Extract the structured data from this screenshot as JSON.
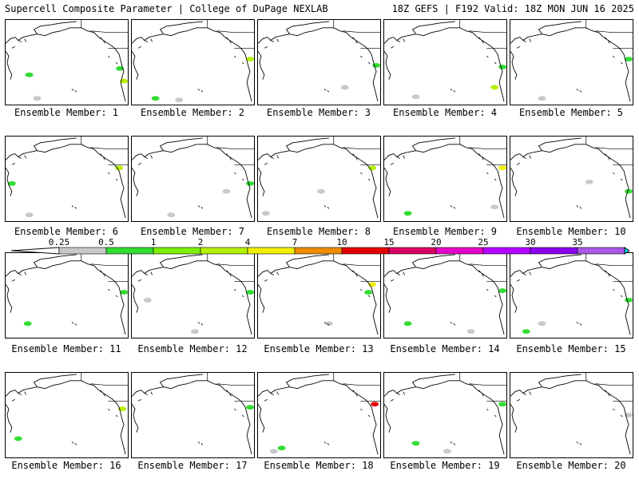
{
  "header": {
    "title": "Supercell Composite Parameter | College of DuPage NEXLAB",
    "run_info": "18Z GEFS | F192 Valid: 18Z MON JUN 16 2025"
  },
  "members": [
    {
      "label": "Ensemble Member: 1"
    },
    {
      "label": "Ensemble Member: 2"
    },
    {
      "label": "Ensemble Member: 3"
    },
    {
      "label": "Ensemble Member: 4"
    },
    {
      "label": "Ensemble Member: 5"
    },
    {
      "label": "Ensemble Member: 6"
    },
    {
      "label": "Ensemble Member: 7"
    },
    {
      "label": "Ensemble Member: 8"
    },
    {
      "label": "Ensemble Member: 9"
    },
    {
      "label": "Ensemble Member: 10"
    },
    {
      "label": "Ensemble Member: 11"
    },
    {
      "label": "Ensemble Member: 12"
    },
    {
      "label": "Ensemble Member: 13"
    },
    {
      "label": "Ensemble Member: 14"
    },
    {
      "label": "Ensemble Member: 15"
    },
    {
      "label": "Ensemble Member: 16"
    },
    {
      "label": "Ensemble Member: 17"
    },
    {
      "label": "Ensemble Member: 18"
    },
    {
      "label": "Ensemble Member: 19"
    },
    {
      "label": "Ensemble Member: 20"
    }
  ],
  "colorbar": {
    "ticks": [
      "0.25",
      "0.5",
      "1",
      "2",
      "4",
      "7",
      "10",
      "15",
      "20",
      "25",
      "30",
      "35"
    ],
    "colors": [
      "#c8c8c8",
      "#32dc32",
      "#7cf000",
      "#b4f000",
      "#f0f000",
      "#f08c00",
      "#e60000",
      "#dc0064",
      "#e600c8",
      "#b400ff",
      "#8c00f0",
      "#aa5ae6",
      "#00e6f0"
    ]
  }
}
